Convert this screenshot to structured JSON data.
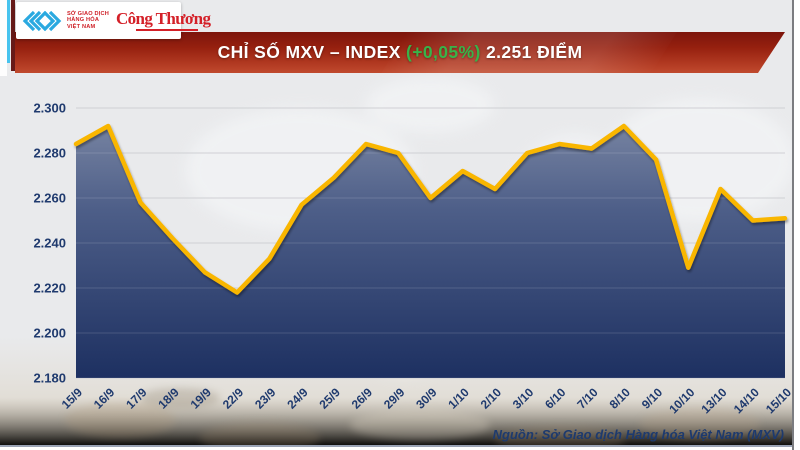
{
  "header": {
    "logo": {
      "board_lines": [
        "SỞ GIAO DỊCH",
        "HÀNG HÓA",
        "VIỆT NAM"
      ],
      "congthuong": "Công Thương"
    },
    "banner": {
      "title_prefix": "CHỈ SỐ MXV – INDEX ",
      "change": "(+0,05%)",
      "title_suffix": " 2.251 ĐIỂM"
    }
  },
  "chart_data": {
    "type": "area",
    "title": "CHỈ SỐ MXV – INDEX (+0,05%) 2.251 ĐIỂM",
    "x": [
      "15/9",
      "16/9",
      "17/9",
      "18/9",
      "19/9",
      "22/9",
      "23/9",
      "24/9",
      "25/9",
      "26/9",
      "29/9",
      "30/9",
      "1/10",
      "2/10",
      "3/10",
      "6/10",
      "7/10",
      "8/10",
      "9/10",
      "10/10",
      "13/10",
      "14/10",
      "15/10"
    ],
    "series": [
      {
        "name": "MXV-Index",
        "values": [
          2.284,
          2.292,
          2.258,
          2.242,
          2.227,
          2.218,
          2.233,
          2.257,
          2.269,
          2.284,
          2.28,
          2.26,
          2.272,
          2.264,
          2.28,
          2.284,
          2.282,
          2.292,
          2.277,
          2.229,
          2.264,
          2.25,
          2.251
        ]
      }
    ],
    "ylim": [
      2.18,
      2.3
    ],
    "yticks": [
      "2.300",
      "2.280",
      "2.260",
      "2.240",
      "2.220",
      "2.200",
      "2.180"
    ],
    "xlabel": "",
    "ylabel": "",
    "grid": true,
    "legend": false,
    "line_color": "#f9b602",
    "fill_top": "#7e8aa6",
    "fill_mid": "#4d5e88",
    "fill_bottom": "#1d3061"
  },
  "footer": {
    "source": "Nguồn: Sở Giao dịch Hàng hóa Việt Nam (MXV)"
  },
  "colors": {
    "accent_red": "#a32513",
    "gold": "#f9b602",
    "navy": "#1f3a6e",
    "green": "#38b349",
    "background": "#e9eaec"
  }
}
